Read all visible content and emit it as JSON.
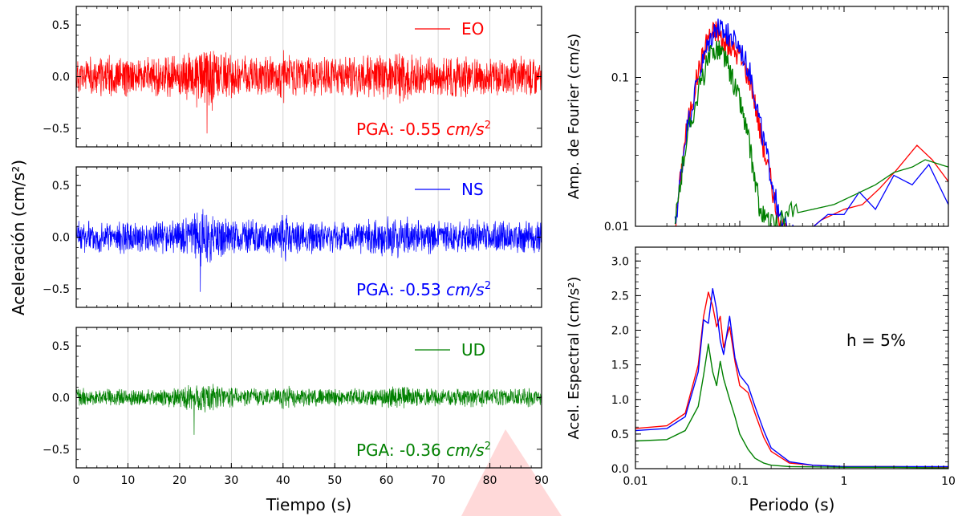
{
  "watermark_color": "#ff0000",
  "left": {
    "ylabel": "Aceleración (cm/s²)",
    "xlabel": "Tiempo (s)",
    "xlim": [
      0,
      90
    ],
    "xticks": [
      0,
      10,
      20,
      30,
      40,
      50,
      60,
      70,
      80,
      90
    ],
    "ylim": [
      -0.68,
      0.68
    ],
    "yticks": [
      -0.5,
      0.0,
      0.5
    ],
    "ytick_labels": [
      "−0.5",
      "0.0",
      "0.5"
    ],
    "grid": "vertical",
    "panels": [
      {
        "legend": "EO",
        "color": "#ff0000",
        "pga_text": "PGA: -0.55",
        "amp": 0.18,
        "peak": -0.55,
        "peak_t": 25.3,
        "seed": 11
      },
      {
        "legend": "NS",
        "color": "#0000ff",
        "pga_text": "PGA: -0.53",
        "amp": 0.15,
        "peak": -0.53,
        "peak_t": 24.0,
        "seed": 23
      },
      {
        "legend": "UD",
        "color": "#008000",
        "pga_text": "PGA: -0.36",
        "amp": 0.08,
        "peak": -0.36,
        "peak_t": 22.8,
        "seed": 37
      }
    ],
    "pga_unit": "cm/s",
    "pga_exp": "2"
  },
  "fourier": {
    "ylabel": "Amp. de Fourier (cm/s)",
    "scale": "log-log",
    "xlim": [
      0.01,
      10
    ],
    "ylim": [
      0.01,
      0.3
    ],
    "yticks": [
      0.01,
      0.1
    ],
    "ytick_labels": [
      "0.01",
      "0.1"
    ],
    "series": [
      {
        "color": "#ff0000",
        "points": [
          [
            0.024,
            0.01
          ],
          [
            0.03,
            0.04
          ],
          [
            0.04,
            0.11
          ],
          [
            0.05,
            0.19
          ],
          [
            0.06,
            0.21
          ],
          [
            0.07,
            0.17
          ],
          [
            0.08,
            0.16
          ],
          [
            0.1,
            0.14
          ],
          [
            0.13,
            0.09
          ],
          [
            0.16,
            0.04
          ],
          [
            0.2,
            0.02
          ],
          [
            0.24,
            0.01
          ],
          [
            0.35,
            0.008
          ],
          [
            0.6,
            0.011
          ],
          [
            1.0,
            0.013
          ],
          [
            1.5,
            0.014
          ],
          [
            2.2,
            0.018
          ],
          [
            3.2,
            0.024
          ],
          [
            5.0,
            0.035
          ],
          [
            7.0,
            0.028
          ],
          [
            10,
            0.02
          ]
        ]
      },
      {
        "color": "#0000ff",
        "points": [
          [
            0.024,
            0.01
          ],
          [
            0.03,
            0.04
          ],
          [
            0.04,
            0.1
          ],
          [
            0.05,
            0.17
          ],
          [
            0.06,
            0.22
          ],
          [
            0.07,
            0.2
          ],
          [
            0.08,
            0.19
          ],
          [
            0.1,
            0.16
          ],
          [
            0.13,
            0.1
          ],
          [
            0.16,
            0.045
          ],
          [
            0.2,
            0.022
          ],
          [
            0.24,
            0.011
          ],
          [
            0.35,
            0.008
          ],
          [
            0.7,
            0.012
          ],
          [
            1.0,
            0.012
          ],
          [
            1.4,
            0.017
          ],
          [
            2.0,
            0.013
          ],
          [
            3.0,
            0.022
          ],
          [
            4.5,
            0.019
          ],
          [
            6.5,
            0.026
          ],
          [
            10,
            0.014
          ]
        ]
      },
      {
        "color": "#008000",
        "points": [
          [
            0.024,
            0.01
          ],
          [
            0.03,
            0.035
          ],
          [
            0.04,
            0.08
          ],
          [
            0.05,
            0.13
          ],
          [
            0.06,
            0.16
          ],
          [
            0.07,
            0.14
          ],
          [
            0.08,
            0.11
          ],
          [
            0.1,
            0.07
          ],
          [
            0.12,
            0.04
          ],
          [
            0.14,
            0.02
          ],
          [
            0.16,
            0.012
          ],
          [
            0.2,
            0.01
          ],
          [
            0.3,
            0.012
          ],
          [
            0.5,
            0.013
          ],
          [
            0.8,
            0.014
          ],
          [
            1.2,
            0.016
          ],
          [
            2.0,
            0.019
          ],
          [
            3.0,
            0.023
          ],
          [
            4.5,
            0.025
          ],
          [
            6.0,
            0.028
          ],
          [
            10,
            0.025
          ]
        ]
      }
    ]
  },
  "spectral": {
    "ylabel": "Acel. Espectral (cm/s²)",
    "xlabel": "Periodo (s)",
    "scale": "log-x",
    "xlim": [
      0.01,
      10
    ],
    "xticks": [
      0.01,
      0.1,
      1,
      10
    ],
    "xtick_labels": [
      "0.01",
      "0.1",
      "1",
      "10"
    ],
    "ylim": [
      0,
      3.2
    ],
    "yticks": [
      0.0,
      0.5,
      1.0,
      1.5,
      2.0,
      2.5,
      3.0
    ],
    "ytick_labels": [
      "0.0",
      "0.5",
      "1.0",
      "1.5",
      "2.0",
      "2.5",
      "3.0"
    ],
    "annotation": "h = 5%",
    "series": [
      {
        "color": "#ff0000",
        "points": [
          [
            0.01,
            0.58
          ],
          [
            0.02,
            0.62
          ],
          [
            0.03,
            0.8
          ],
          [
            0.04,
            1.5
          ],
          [
            0.045,
            2.2
          ],
          [
            0.05,
            2.55
          ],
          [
            0.055,
            2.35
          ],
          [
            0.06,
            2.05
          ],
          [
            0.065,
            2.2
          ],
          [
            0.07,
            1.75
          ],
          [
            0.08,
            2.05
          ],
          [
            0.09,
            1.55
          ],
          [
            0.1,
            1.2
          ],
          [
            0.12,
            1.1
          ],
          [
            0.14,
            0.8
          ],
          [
            0.17,
            0.45
          ],
          [
            0.2,
            0.25
          ],
          [
            0.3,
            0.08
          ],
          [
            0.5,
            0.05
          ],
          [
            1,
            0.03
          ],
          [
            3,
            0.03
          ],
          [
            10,
            0.02
          ]
        ]
      },
      {
        "color": "#0000ff",
        "points": [
          [
            0.01,
            0.55
          ],
          [
            0.02,
            0.58
          ],
          [
            0.03,
            0.75
          ],
          [
            0.04,
            1.4
          ],
          [
            0.045,
            2.15
          ],
          [
            0.05,
            2.1
          ],
          [
            0.055,
            2.6
          ],
          [
            0.06,
            2.3
          ],
          [
            0.065,
            1.85
          ],
          [
            0.07,
            1.65
          ],
          [
            0.08,
            2.2
          ],
          [
            0.09,
            1.6
          ],
          [
            0.1,
            1.35
          ],
          [
            0.12,
            1.2
          ],
          [
            0.14,
            0.9
          ],
          [
            0.17,
            0.55
          ],
          [
            0.2,
            0.3
          ],
          [
            0.3,
            0.1
          ],
          [
            0.5,
            0.05
          ],
          [
            1,
            0.03
          ],
          [
            3,
            0.03
          ],
          [
            10,
            0.03
          ]
        ]
      },
      {
        "color": "#008000",
        "points": [
          [
            0.01,
            0.4
          ],
          [
            0.02,
            0.42
          ],
          [
            0.03,
            0.55
          ],
          [
            0.04,
            0.9
          ],
          [
            0.045,
            1.35
          ],
          [
            0.05,
            1.8
          ],
          [
            0.055,
            1.4
          ],
          [
            0.06,
            1.2
          ],
          [
            0.065,
            1.55
          ],
          [
            0.07,
            1.3
          ],
          [
            0.08,
            1.0
          ],
          [
            0.09,
            0.75
          ],
          [
            0.1,
            0.5
          ],
          [
            0.12,
            0.28
          ],
          [
            0.14,
            0.15
          ],
          [
            0.17,
            0.08
          ],
          [
            0.2,
            0.05
          ],
          [
            0.3,
            0.03
          ],
          [
            1,
            0.02
          ],
          [
            3,
            0.02
          ],
          [
            10,
            0.01
          ]
        ]
      }
    ]
  }
}
